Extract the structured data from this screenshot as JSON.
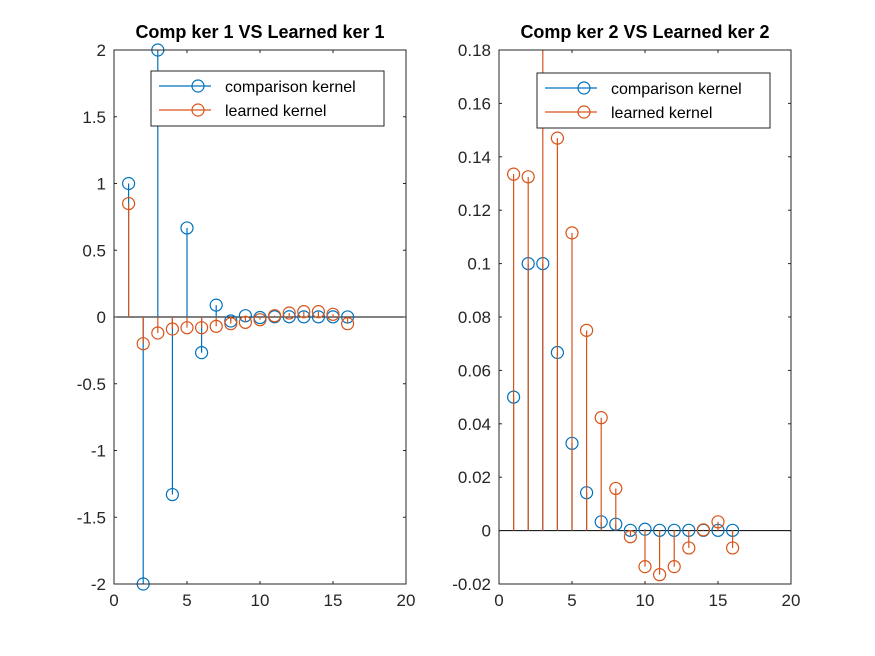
{
  "chart_data": [
    {
      "type": "stem",
      "title": "Comp ker 1  VS Learned ker 1",
      "xlabel": "",
      "ylabel": "",
      "xlim": [
        0,
        20
      ],
      "ylim": [
        -2,
        2
      ],
      "xticks": [
        0,
        5,
        10,
        15,
        20
      ],
      "yticks": [
        -2,
        -1.5,
        -1,
        -0.5,
        0,
        0.5,
        1,
        1.5,
        2
      ],
      "xtick_labels": [
        "0",
        "5",
        "10",
        "15",
        "20"
      ],
      "ytick_labels": [
        "-2",
        "-1.5",
        "-1",
        "-0.5",
        "0",
        "0.5",
        "1",
        "1.5",
        "2"
      ],
      "legend_position": "top-right",
      "x": [
        1,
        2,
        3,
        4,
        5,
        6,
        7,
        8,
        9,
        10,
        11,
        12,
        13,
        14,
        15,
        16
      ],
      "series": [
        {
          "name": "comparison kernel",
          "color": "#0072BD",
          "values": [
            1,
            -2,
            2,
            -1.33,
            0.667,
            -0.267,
            0.089,
            -0.03,
            0.01,
            -0.004,
            0.002,
            0.002,
            0.001,
            0.001,
            0.001,
            0.0005
          ]
        },
        {
          "name": "learned kernel",
          "color": "#D95319",
          "values": [
            0.85,
            -0.2,
            -0.12,
            -0.09,
            -0.08,
            -0.08,
            -0.07,
            -0.05,
            -0.04,
            -0.02,
            0.01,
            0.03,
            0.04,
            0.04,
            0.02,
            -0.05
          ]
        }
      ]
    },
    {
      "type": "stem",
      "title": "Comp ker 2  VS Learned ker 2",
      "xlabel": "",
      "ylabel": "",
      "xlim": [
        0,
        20
      ],
      "ylim": [
        -0.02,
        0.18
      ],
      "xticks": [
        0,
        5,
        10,
        15,
        20
      ],
      "yticks": [
        -0.02,
        0,
        0.02,
        0.04,
        0.06,
        0.08,
        0.1,
        0.12,
        0.14,
        0.16,
        0.18
      ],
      "xtick_labels": [
        "0",
        "5",
        "10",
        "15",
        "20"
      ],
      "ytick_labels": [
        "-0.02",
        "0",
        "0.02",
        "0.04",
        "0.06",
        "0.08",
        "0.1",
        "0.12",
        "0.14",
        "0.16",
        "0.18"
      ],
      "legend_position": "top-right",
      "x": [
        1,
        2,
        3,
        4,
        5,
        6,
        7,
        8,
        9,
        10,
        11,
        12,
        13,
        14,
        15,
        16
      ],
      "series": [
        {
          "name": "comparison kernel",
          "color": "#0072BD",
          "values": [
            0.05,
            0.1,
            0.1,
            0.0667,
            0.0327,
            0.0142,
            0.0033,
            0.0024,
            0.0001,
            0.0005,
            0.0001,
            0.0001,
            0.0001,
            0.0001,
            0.0001,
            0.0001
          ]
        },
        {
          "name": "learned kernel",
          "color": "#D95319",
          "values": [
            0.1335,
            0.1325,
            0.185,
            0.147,
            0.1115,
            0.075,
            0.0423,
            0.0158,
            -0.0023,
            -0.0135,
            -0.0165,
            -0.0135,
            -0.0065,
            0.0003,
            0.0033,
            -0.0065
          ]
        }
      ]
    }
  ]
}
